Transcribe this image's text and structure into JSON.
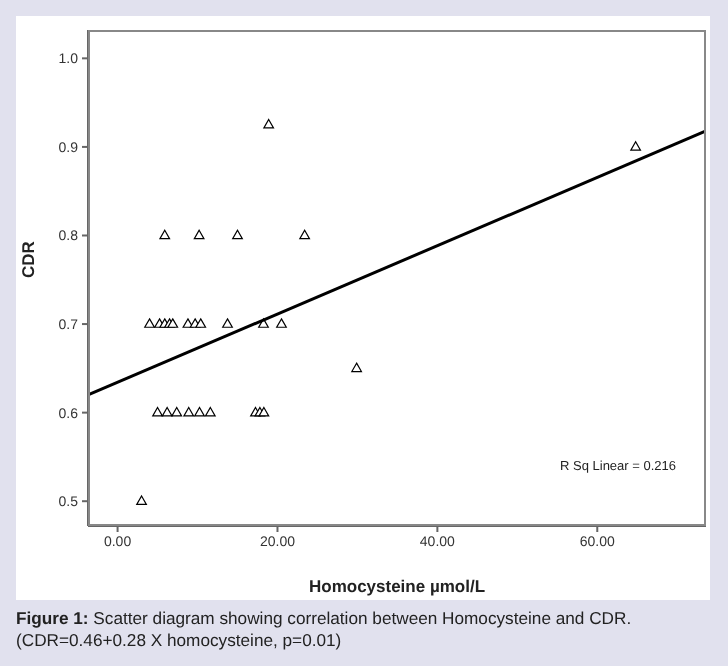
{
  "chart_data": {
    "type": "scatter",
    "xlabel": "Homocysteine µmol/L",
    "ylabel": "CDR",
    "marker": "triangle",
    "xlim": [
      -3.7,
      73.6
    ],
    "ylim": [
      0.472,
      1.032
    ],
    "xticks": [
      {
        "value": 0,
        "label": "0.00"
      },
      {
        "value": 20,
        "label": "20.00"
      },
      {
        "value": 40,
        "label": "40.00"
      },
      {
        "value": 60,
        "label": "60.00"
      }
    ],
    "yticks": [
      0.5,
      0.6,
      0.7,
      0.8,
      0.9,
      {
        "value": 1,
        "label": "1.0"
      }
    ],
    "series": [
      {
        "color": "#000000",
        "x": [
          5.9,
          10.2,
          15,
          23.4,
          18.9,
          64.8,
          4,
          5.25,
          5.9,
          6.5,
          6.9,
          8.8,
          9.7,
          10.4,
          13.75,
          18.25,
          20.5,
          29.9,
          5,
          6.2,
          7.4,
          8.9,
          10.25,
          11.6,
          17.25,
          17.8,
          18.3,
          3
        ],
        "values": [
          0.8,
          0.8,
          0.8,
          0.8,
          0.925,
          0.9,
          0.7,
          0.7,
          0.7,
          0.7,
          0.7,
          0.7,
          0.7,
          0.7,
          0.7,
          0.7,
          0.7,
          0.65,
          0.6,
          0.6,
          0.6,
          0.6,
          0.6,
          0.6,
          0.6,
          0.6,
          0.6,
          0.5
        ]
      },
      {
        "type": "line",
        "marker": "none",
        "color": "#000000",
        "x": [
          -3.7,
          73.6
        ],
        "values": [
          0.62,
          0.918
        ]
      }
    ],
    "annotations": [
      "R Sq Linear = 0.216",
      "Figure 1: Scatter diagram showing correlation between Homocysteine and CDR. (CDR=0.46+0.28 X homocysteine, p=0.01)"
    ]
  }
}
